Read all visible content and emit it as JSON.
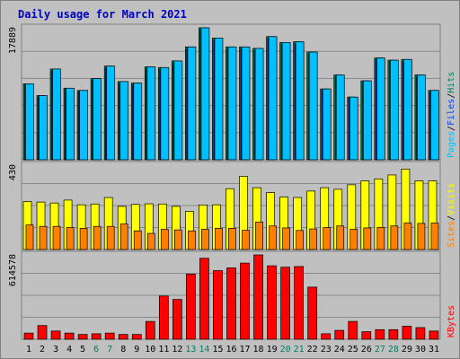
{
  "title": "Daily usage for March 2021",
  "colors": {
    "title": "#0000c0",
    "background": "#c0c0c0",
    "panel": "#c0c0c0",
    "border": "#808080",
    "grid": "#8a8a8a",
    "hits": "#00805c",
    "files": "#0040ff",
    "pages": "#00c0ff",
    "visits": "#ffff00",
    "sites": "#ff8000",
    "kbytes": "#ff0000",
    "weekend_label": "#00805c",
    "weekday_label": "#000000"
  },
  "panels": {
    "top": {
      "ymax_label": "17889",
      "legend": [
        {
          "text": "Pages",
          "color": "#00c0ff"
        },
        {
          "text": "/",
          "color": "#000000"
        },
        {
          "text": "Files",
          "color": "#0040ff"
        },
        {
          "text": "/",
          "color": "#000000"
        },
        {
          "text": "Hits",
          "color": "#00805c"
        }
      ]
    },
    "middle": {
      "ymax_label": "430",
      "legend": [
        {
          "text": "Sites",
          "color": "#ff8000"
        },
        {
          "text": "/",
          "color": "#000000"
        },
        {
          "text": "Visits",
          "color": "#ffff00"
        }
      ]
    },
    "bottom": {
      "ymax_label": "614578",
      "legend": [
        {
          "text": "KBytes",
          "color": "#ff0000"
        }
      ]
    }
  },
  "chart_data": {
    "type": "bar",
    "title": "Daily usage for March 2021",
    "categories": [
      "1",
      "2",
      "3",
      "4",
      "5",
      "6",
      "7",
      "8",
      "9",
      "10",
      "11",
      "12",
      "13",
      "14",
      "15",
      "16",
      "17",
      "18",
      "19",
      "20",
      "21",
      "22",
      "23",
      "24",
      "25",
      "26",
      "27",
      "28",
      "29",
      "30",
      "31"
    ],
    "weekend_days": [
      "6",
      "7",
      "13",
      "14",
      "20",
      "21",
      "27",
      "28"
    ],
    "panels": [
      {
        "name": "top",
        "ymax": 17889,
        "series": [
          {
            "name": "Hits",
            "values": [
              10300,
              8700,
              12300,
              9700,
              9400,
              11000,
              12700,
              10600,
              10400,
              12600,
              12500,
              13400,
              15300,
              17889,
              16500,
              15300,
              15300,
              15100,
              16700,
              15900,
              16000,
              14600,
              9600,
              11500,
              8500,
              10700,
              13800,
              13500,
              13600,
              11500,
              9400
            ]
          },
          {
            "name": "Files",
            "values": [
              10100,
              8500,
              12000,
              9500,
              9200,
              10700,
              12400,
              10300,
              10200,
              12300,
              12200,
              13100,
              15000,
              17600,
              16200,
              15000,
              15000,
              14800,
              16400,
              15600,
              15700,
              14300,
              9400,
              11200,
              8300,
              10500,
              13600,
              13300,
              13300,
              11200,
              9200
            ]
          },
          {
            "name": "Pages",
            "values": [
              10300,
              8700,
              12300,
              9700,
              9400,
              11000,
              12700,
              10600,
              10400,
              12600,
              12500,
              13400,
              15300,
              17889,
              16500,
              15300,
              15300,
              15100,
              16700,
              15900,
              16000,
              14600,
              9600,
              11500,
              8500,
              10700,
              13800,
              13500,
              13600,
              11500,
              9400
            ]
          }
        ]
      },
      {
        "name": "middle",
        "ymax": 430,
        "series": [
          {
            "name": "Visits",
            "values": [
              245,
              242,
              237,
              252,
              228,
              232,
              265,
              220,
              230,
              233,
              232,
              220,
              195,
              227,
              228,
              310,
              373,
              315,
              290,
              268,
              265,
              298,
              315,
              307,
              330,
              350,
              360,
              380,
              410,
              350,
              350
            ]
          },
          {
            "name": "Sites",
            "values": [
              125,
              118,
              118,
              112,
              108,
              118,
              118,
              130,
              95,
              82,
              103,
              100,
              95,
              103,
              108,
              108,
              98,
              140,
              120,
              110,
              97,
              105,
              112,
              120,
              103,
              110,
              113,
              120,
              135,
              133,
              135
            ]
          }
        ]
      },
      {
        "name": "bottom",
        "ymax": 614578,
        "series": [
          {
            "name": "KBytes",
            "values": [
              45000,
              100000,
              60000,
              45000,
              35000,
              40000,
              45000,
              35000,
              35000,
              130000,
              315000,
              290000,
              475000,
              590000,
              500000,
              520000,
              555000,
              614578,
              535000,
              525000,
              530000,
              380000,
              40000,
              65000,
              130000,
              55000,
              70000,
              70000,
              95000,
              85000,
              60000
            ]
          }
        ]
      }
    ]
  }
}
